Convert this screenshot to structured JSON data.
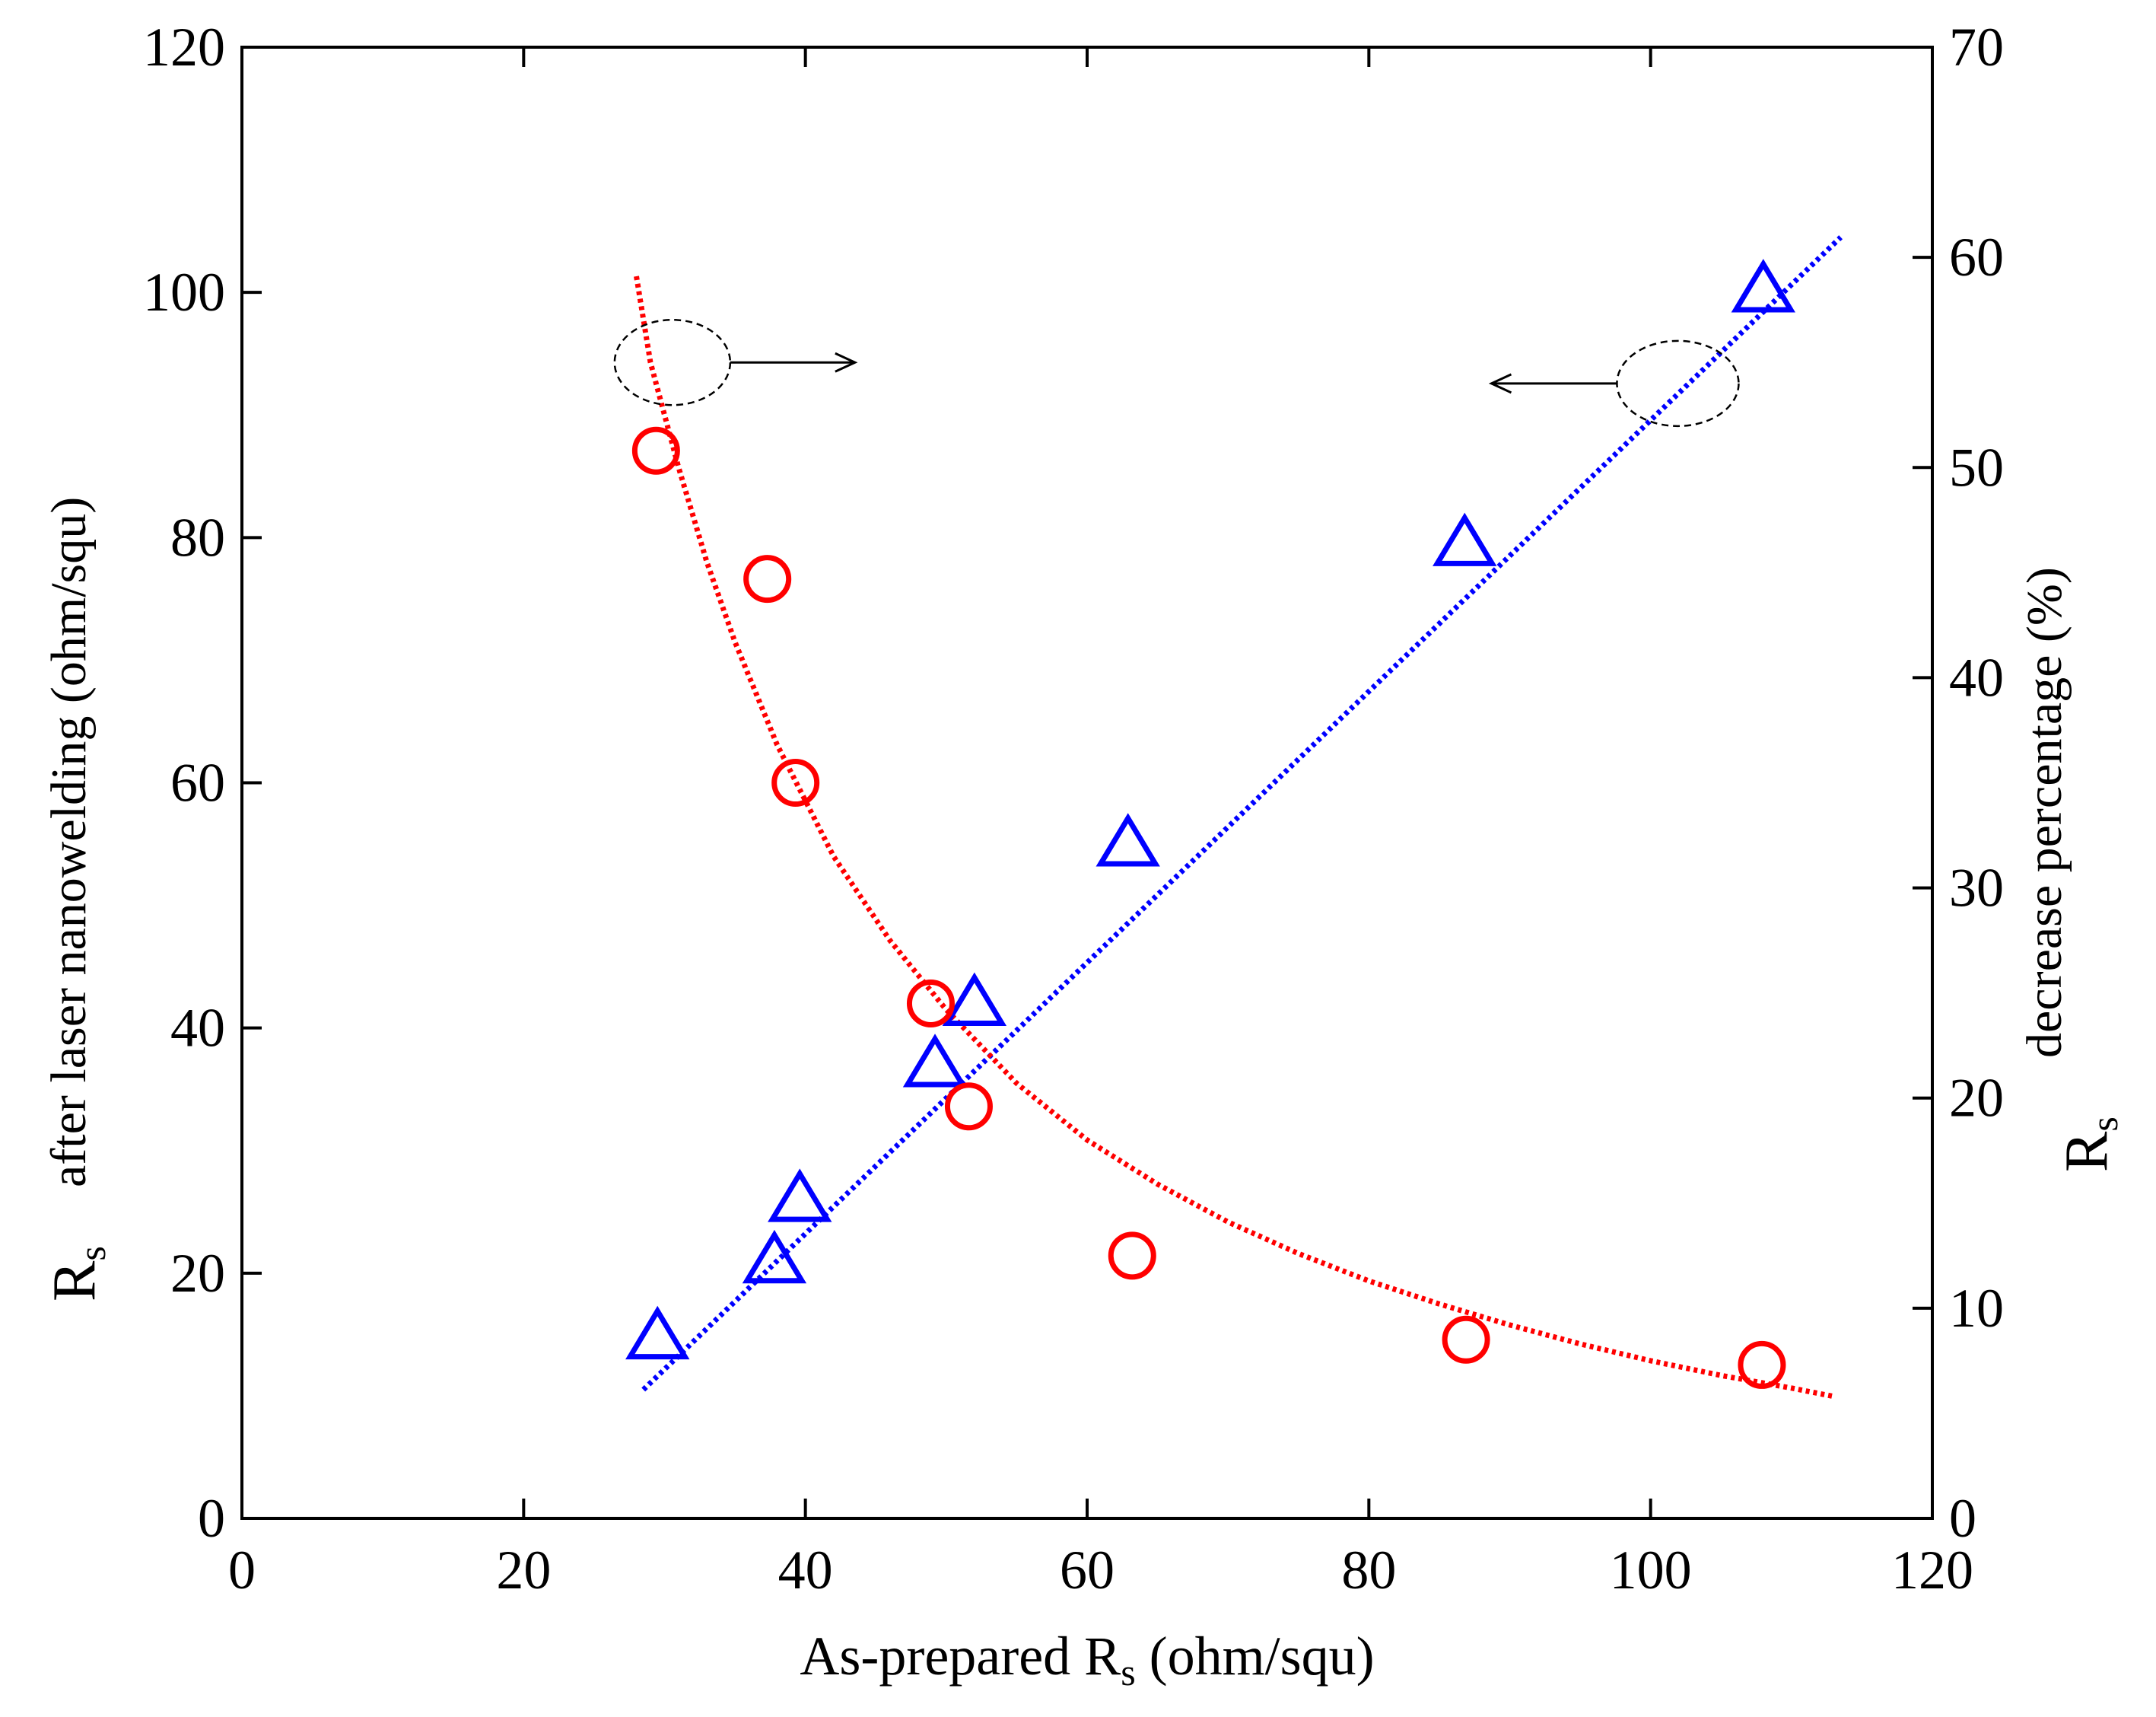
{
  "chart_data": {
    "type": "scatter",
    "title": "",
    "xlabel": {
      "prefix": "As-prepared R",
      "sub": "s",
      "suffix": " (ohm/squ)"
    },
    "ylabel_left": {
      "main": "R",
      "sub": "s",
      "suffix": "after laser nanowelding (ohm/squ)"
    },
    "ylabel_right": {
      "main": "R",
      "sub": "s",
      "suffix": "decrease percentage (%)"
    },
    "xlim": [
      0,
      120
    ],
    "ylim_left": [
      0,
      120
    ],
    "ylim_right": [
      0,
      70
    ],
    "x_ticks": [
      "0",
      "20",
      "40",
      "60",
      "80",
      "100",
      "120"
    ],
    "y_left_ticks": [
      "0",
      "20",
      "40",
      "60",
      "80",
      "100",
      "120"
    ],
    "y_right_ticks": [
      "0",
      "10",
      "20",
      "30",
      "40",
      "50",
      "60",
      "70"
    ],
    "grid": false,
    "series": [
      {
        "name": "Rs after laser nanowelding",
        "axis": "left",
        "marker": "triangle",
        "color": "#0000ff",
        "x": [
          29.5,
          37.8,
          39.6,
          49.2,
          52.0,
          62.9,
          86.8,
          108.0
        ],
        "y": [
          14.8,
          21.0,
          26.0,
          37.0,
          42.0,
          55.0,
          79.5,
          100.2
        ]
      },
      {
        "name": "Rs decrease percentage",
        "axis": "right",
        "marker": "circle",
        "color": "#ff0000",
        "x": [
          29.4,
          37.3,
          39.3,
          48.9,
          51.6,
          63.2,
          86.9,
          107.9
        ],
        "y": [
          50.8,
          44.7,
          35.0,
          24.5,
          19.6,
          12.5,
          8.5,
          7.3
        ]
      }
    ],
    "fits": [
      {
        "name": "linear fit",
        "axis": "left",
        "color": "#0000ff",
        "x": [
          28.5,
          113.5
        ],
        "y": [
          10.5,
          104.5
        ]
      },
      {
        "name": "decay fit",
        "axis": "right",
        "color": "#ff0000",
        "x": [
          28.0,
          29.0,
          31.0,
          33.0,
          35.0,
          38.0,
          42.0,
          46.0,
          50.0,
          55.0,
          60.0,
          65.0,
          70.0,
          75.0,
          80.0,
          85.0,
          90.0,
          95.0,
          100.0,
          105.0,
          110.0,
          113.0
        ],
        "y": [
          59.1,
          55.0,
          50.0,
          45.5,
          41.7,
          36.8,
          31.5,
          27.5,
          24.2,
          20.7,
          18.0,
          15.9,
          14.1,
          12.6,
          11.3,
          10.2,
          9.2,
          8.3,
          7.5,
          6.8,
          6.2,
          5.8
        ]
      }
    ],
    "annotations": [
      {
        "type": "ellipse-arrow",
        "target_axis": "right",
        "center": [
          36.5,
          55.0
        ],
        "arrow_direction": "right"
      },
      {
        "type": "ellipse-arrow",
        "target_axis": "left",
        "center": [
          101.5,
          54.0
        ],
        "arrow_direction": "left"
      }
    ]
  }
}
